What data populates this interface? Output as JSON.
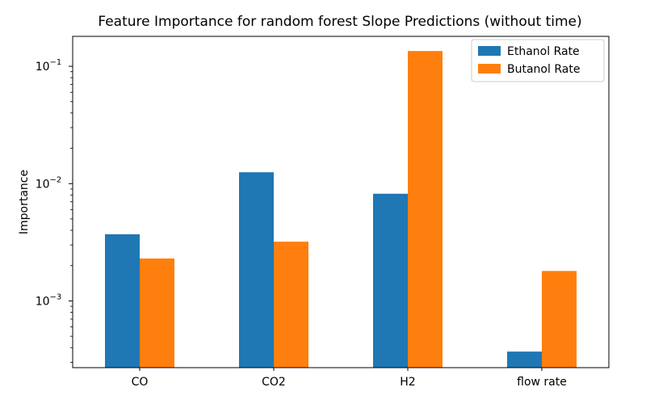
{
  "chart_data": {
    "type": "bar",
    "title": "Feature Importance for random forest Slope Predictions (without time)",
    "xlabel": "",
    "ylabel": "Importance",
    "yscale": "log",
    "ylim": [
      0.00027,
      0.18
    ],
    "y_ticks": [
      {
        "value": 0.001,
        "base": "10",
        "exp": "−3"
      },
      {
        "value": 0.01,
        "base": "10",
        "exp": "−2"
      },
      {
        "value": 0.1,
        "base": "10",
        "exp": "−1"
      }
    ],
    "categories": [
      "CO",
      "CO2",
      "H2",
      "flow rate"
    ],
    "series": [
      {
        "name": "Ethanol Rate",
        "color": "#1f77b4",
        "values": [
          0.0037,
          0.0125,
          0.0082,
          0.00037
        ]
      },
      {
        "name": "Butanol Rate",
        "color": "#ff7f0e",
        "values": [
          0.0023,
          0.0032,
          0.135,
          0.0018
        ]
      }
    ],
    "legend": "top-right",
    "grid": false
  }
}
